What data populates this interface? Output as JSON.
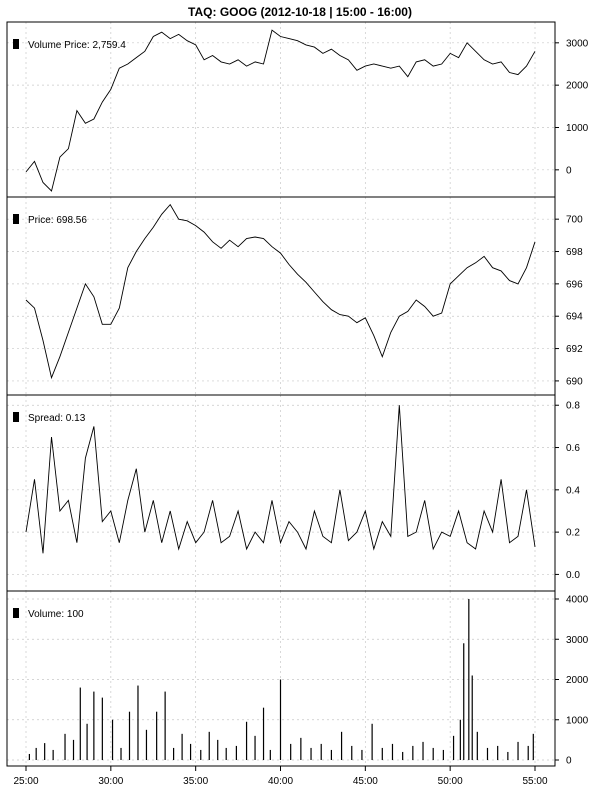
{
  "chart_data": {
    "type": "line",
    "title": "TAQ: GOOG (2012-10-18 | 15:00 - 16:00)",
    "x_ticks": [
      "25:00",
      "30:00",
      "35:00",
      "40:00",
      "45:00",
      "50:00",
      "55:00"
    ],
    "x_range_minutes": [
      25,
      55
    ],
    "grid": true,
    "panels": [
      {
        "id": "volume-price",
        "type": "line",
        "legend": "Volume Price: 2,759.4",
        "ylim": [
          -500,
          3350
        ],
        "y_ticks": [
          "0",
          "1000",
          "2000",
          "3000"
        ],
        "y_tick_values": [
          0,
          1000,
          2000,
          3000
        ],
        "x": [
          25,
          25.5,
          26,
          26.5,
          27,
          27.5,
          28,
          28.5,
          29,
          29.5,
          30,
          30.5,
          31,
          31.5,
          32,
          32.5,
          33,
          33.5,
          34,
          34.5,
          35,
          35.5,
          36,
          36.5,
          37,
          37.5,
          38,
          38.5,
          39,
          39.5,
          40,
          40.5,
          41,
          41.5,
          42,
          42.5,
          43,
          43.5,
          44,
          44.5,
          45,
          45.5,
          46,
          46.5,
          47,
          47.5,
          48,
          48.5,
          49,
          49.5,
          50,
          50.5,
          51,
          51.5,
          52,
          52.5,
          53,
          53.5,
          54,
          54.5,
          55
        ],
        "values": [
          -50,
          200,
          -300,
          -500,
          300,
          500,
          1400,
          1100,
          1200,
          1600,
          1900,
          2400,
          2500,
          2650,
          2800,
          3150,
          3250,
          3100,
          3200,
          3050,
          2950,
          2600,
          2700,
          2550,
          2500,
          2600,
          2450,
          2550,
          2500,
          3300,
          3150,
          3100,
          3050,
          2950,
          2900,
          2750,
          2850,
          2700,
          2600,
          2350,
          2450,
          2500,
          2450,
          2400,
          2450,
          2200,
          2550,
          2600,
          2450,
          2500,
          2750,
          2650,
          3000,
          2800,
          2600,
          2500,
          2550,
          2300,
          2250,
          2450,
          2800
        ]
      },
      {
        "id": "price",
        "type": "line",
        "legend": "Price: 698.56",
        "ylim": [
          689.5,
          701
        ],
        "y_ticks": [
          "690",
          "692",
          "694",
          "696",
          "698",
          "700"
        ],
        "y_tick_values": [
          690,
          692,
          694,
          696,
          698,
          700
        ],
        "x": [
          25,
          25.5,
          26,
          26.5,
          27,
          27.5,
          28,
          28.5,
          29,
          29.5,
          30,
          30.5,
          31,
          31.5,
          32,
          32.5,
          33,
          33.5,
          34,
          34.5,
          35,
          35.5,
          36,
          36.5,
          37,
          37.5,
          38,
          38.5,
          39,
          39.5,
          40,
          40.5,
          41,
          41.5,
          42,
          42.5,
          43,
          43.5,
          44,
          44.5,
          45,
          45.5,
          46,
          46.5,
          47,
          47.5,
          48,
          48.5,
          49,
          49.5,
          50,
          50.5,
          51,
          51.5,
          52,
          52.5,
          53,
          53.5,
          54,
          54.5,
          55
        ],
        "values": [
          695,
          694.5,
          692.5,
          690.2,
          691.5,
          693,
          694.5,
          696,
          695.2,
          693.5,
          693.5,
          694.5,
          697,
          698,
          698.8,
          699.5,
          700.3,
          700.9,
          700,
          699.9,
          699.6,
          699.2,
          698.6,
          698.2,
          698.7,
          698.3,
          698.8,
          698.9,
          698.8,
          698.3,
          697.9,
          697.2,
          696.6,
          696.1,
          695.5,
          694.9,
          694.4,
          694.1,
          694.0,
          693.6,
          693.9,
          692.8,
          691.5,
          693.0,
          694.0,
          694.3,
          695.0,
          694.6,
          694.0,
          694.2,
          696.0,
          696.5,
          697.0,
          697.3,
          697.7,
          697.0,
          696.8,
          696.2,
          696.0,
          697.0,
          698.6
        ]
      },
      {
        "id": "spread",
        "type": "line",
        "legend": "Spread: 0.13",
        "ylim": [
          -0.05,
          0.82
        ],
        "y_ticks": [
          "0.0",
          "0.2",
          "0.4",
          "0.6",
          "0.8"
        ],
        "y_tick_values": [
          0.0,
          0.2,
          0.4,
          0.6,
          0.8
        ],
        "x": [
          25,
          25.5,
          26,
          26.5,
          27,
          27.5,
          28,
          28.5,
          29,
          29.5,
          30,
          30.5,
          31,
          31.5,
          32,
          32.5,
          33,
          33.5,
          34,
          34.5,
          35,
          35.5,
          36,
          36.5,
          37,
          37.5,
          38,
          38.5,
          39,
          39.5,
          40,
          40.5,
          41,
          41.5,
          42,
          42.5,
          43,
          43.5,
          44,
          44.5,
          45,
          45.5,
          46,
          46.5,
          47,
          47.5,
          48,
          48.5,
          49,
          49.5,
          50,
          50.5,
          51,
          51.5,
          52,
          52.5,
          53,
          53.5,
          54,
          54.5,
          55
        ],
        "values": [
          0.2,
          0.45,
          0.1,
          0.65,
          0.3,
          0.35,
          0.15,
          0.55,
          0.7,
          0.25,
          0.3,
          0.15,
          0.35,
          0.5,
          0.2,
          0.35,
          0.15,
          0.3,
          0.12,
          0.25,
          0.15,
          0.2,
          0.35,
          0.15,
          0.18,
          0.3,
          0.12,
          0.2,
          0.15,
          0.35,
          0.15,
          0.25,
          0.2,
          0.12,
          0.3,
          0.18,
          0.15,
          0.4,
          0.16,
          0.2,
          0.3,
          0.12,
          0.25,
          0.18,
          0.8,
          0.18,
          0.2,
          0.35,
          0.12,
          0.2,
          0.18,
          0.3,
          0.15,
          0.12,
          0.3,
          0.2,
          0.45,
          0.15,
          0.18,
          0.4,
          0.13
        ]
      },
      {
        "id": "volume",
        "type": "bar",
        "legend": "Volume: 100",
        "ylim": [
          0,
          4050
        ],
        "y_ticks": [
          "0",
          "1000",
          "2000",
          "3000",
          "4000"
        ],
        "y_tick_values": [
          0,
          1000,
          2000,
          3000,
          4000
        ],
        "x": [
          25.2,
          25.6,
          26.1,
          26.6,
          27.3,
          27.8,
          28.2,
          28.6,
          29.0,
          29.5,
          30.1,
          30.6,
          31.1,
          31.6,
          32.1,
          32.7,
          33.2,
          33.7,
          34.2,
          34.7,
          35.3,
          35.8,
          36.3,
          36.8,
          37.4,
          38.0,
          38.5,
          39.0,
          39.4,
          40.0,
          40.6,
          41.2,
          41.8,
          42.4,
          43.0,
          43.6,
          44.2,
          44.8,
          45.4,
          46.0,
          46.6,
          47.2,
          47.8,
          48.4,
          49.0,
          49.6,
          50.2,
          50.6,
          50.8,
          51.1,
          51.3,
          51.6,
          52.2,
          52.8,
          53.4,
          54.0,
          54.6,
          54.9
        ],
        "values": [
          150,
          300,
          420,
          250,
          650,
          500,
          1800,
          900,
          1700,
          1550,
          1000,
          300,
          1200,
          1850,
          750,
          1200,
          1700,
          300,
          650,
          400,
          250,
          700,
          500,
          300,
          350,
          950,
          600,
          1300,
          250,
          2000,
          400,
          550,
          300,
          400,
          250,
          700,
          350,
          250,
          900,
          300,
          400,
          200,
          350,
          450,
          300,
          250,
          600,
          1000,
          2900,
          4000,
          2100,
          700,
          300,
          350,
          200,
          450,
          350,
          650
        ]
      }
    ]
  }
}
